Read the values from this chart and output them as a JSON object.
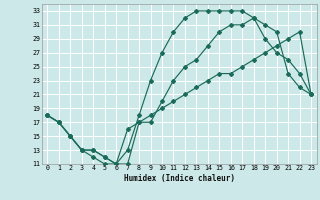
{
  "xlabel": "Humidex (Indice chaleur)",
  "ylabel": "",
  "bg_color": "#cde8e8",
  "line_color": "#1a6b5a",
  "grid_color": "#ffffff",
  "xlim": [
    -0.5,
    23.5
  ],
  "ylim": [
    11,
    34
  ],
  "xticks": [
    0,
    1,
    2,
    3,
    4,
    5,
    6,
    7,
    8,
    9,
    10,
    11,
    12,
    13,
    14,
    15,
    16,
    17,
    18,
    19,
    20,
    21,
    22,
    23
  ],
  "yticks": [
    11,
    13,
    15,
    17,
    19,
    21,
    23,
    25,
    27,
    29,
    31,
    33
  ],
  "curve1_x": [
    0,
    1,
    2,
    3,
    4,
    5,
    6,
    7,
    8,
    9,
    10,
    11,
    12,
    13,
    14,
    15,
    16,
    17,
    18,
    19,
    20,
    21,
    22,
    23
  ],
  "curve1_y": [
    18,
    17,
    15,
    13,
    12,
    11,
    11,
    11,
    17,
    17,
    20,
    23,
    25,
    26,
    28,
    30,
    31,
    31,
    32,
    29,
    27,
    26,
    24,
    21
  ],
  "curve2_x": [
    0,
    1,
    2,
    3,
    4,
    5,
    6,
    7,
    8,
    9,
    10,
    11,
    12,
    13,
    14,
    15,
    16,
    17,
    18,
    19,
    20,
    21,
    22,
    23
  ],
  "curve2_y": [
    18,
    17,
    15,
    13,
    13,
    12,
    11,
    13,
    18,
    23,
    27,
    30,
    32,
    33,
    33,
    33,
    33,
    33,
    32,
    31,
    30,
    24,
    22,
    21
  ],
  "curve3_x": [
    0,
    1,
    2,
    3,
    4,
    5,
    6,
    7,
    8,
    9,
    10,
    11,
    12,
    13,
    14,
    15,
    16,
    17,
    18,
    19,
    20,
    21,
    22,
    23
  ],
  "curve3_y": [
    18,
    17,
    15,
    13,
    13,
    12,
    11,
    16,
    17,
    18,
    19,
    20,
    21,
    22,
    23,
    24,
    24,
    25,
    26,
    27,
    28,
    29,
    30,
    21
  ]
}
